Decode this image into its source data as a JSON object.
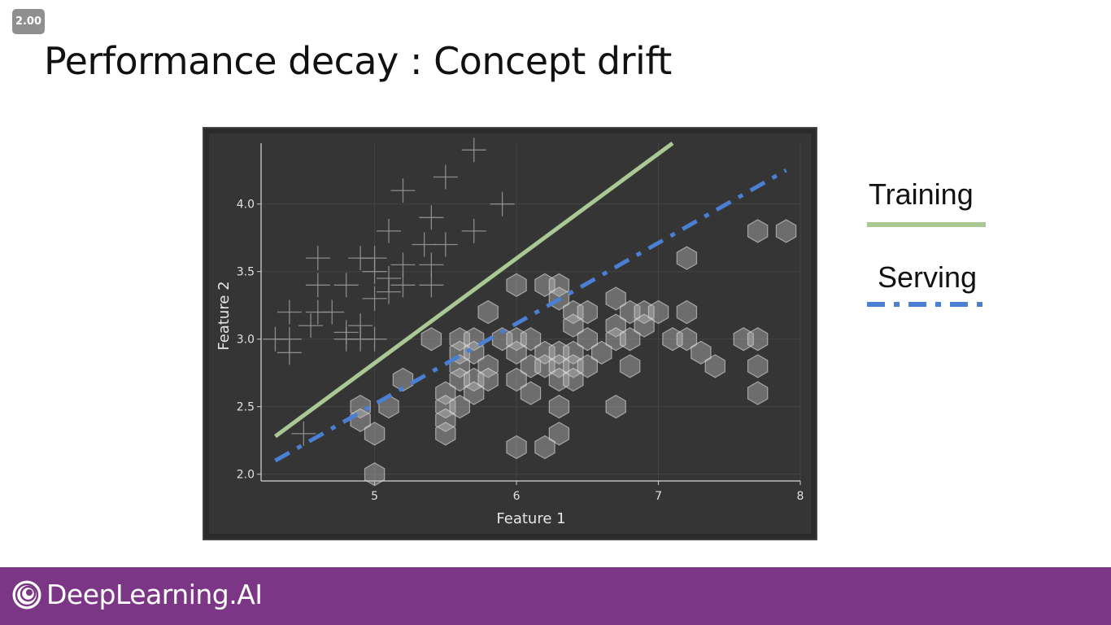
{
  "player": {
    "speed_label": "2.00"
  },
  "slide": {
    "title": "Performance decay : Concept drift"
  },
  "legend": [
    {
      "label": "Training",
      "color": "#a9c894",
      "style": "solid"
    },
    {
      "label": "Serving",
      "color": "#4a7fd4",
      "style": "dashdot"
    }
  ],
  "footer": {
    "brand": "DeepLearning.AI",
    "color": "#7b3686"
  },
  "chart_data": {
    "type": "scatter",
    "xlabel": "Feature 1",
    "ylabel": "Feature 2",
    "xlim": [
      4.2,
      8
    ],
    "ylim": [
      1.95,
      4.45
    ],
    "xticks": [
      5,
      6,
      7,
      8
    ],
    "yticks": [
      2.0,
      2.5,
      3.0,
      3.5,
      4.0
    ],
    "grid": true,
    "background": "#353535",
    "series": [
      {
        "marker": "cross",
        "points": [
          [
            5.7,
            4.4
          ],
          [
            5.5,
            4.2
          ],
          [
            5.2,
            4.1
          ],
          [
            5.9,
            4.0
          ],
          [
            5.4,
            3.9
          ],
          [
            5.1,
            3.8
          ],
          [
            5.7,
            3.8
          ],
          [
            5.35,
            3.7
          ],
          [
            5.5,
            3.7
          ],
          [
            5.0,
            3.6
          ],
          [
            5.2,
            3.55
          ],
          [
            4.6,
            3.6
          ],
          [
            4.9,
            3.6
          ],
          [
            5.4,
            3.55
          ],
          [
            5.0,
            3.5
          ],
          [
            5.1,
            3.45
          ],
          [
            4.8,
            3.4
          ],
          [
            4.6,
            3.4
          ],
          [
            5.4,
            3.4
          ],
          [
            5.2,
            3.4
          ],
          [
            5.0,
            3.3
          ],
          [
            5.1,
            3.35
          ],
          [
            4.7,
            3.2
          ],
          [
            4.6,
            3.2
          ],
          [
            4.55,
            3.1
          ],
          [
            4.4,
            3.2
          ],
          [
            4.9,
            3.1
          ],
          [
            4.8,
            3.05
          ],
          [
            4.8,
            3.0
          ],
          [
            4.9,
            3.0
          ],
          [
            5.0,
            3.0
          ],
          [
            4.3,
            3.0
          ],
          [
            4.4,
            3.0
          ],
          [
            4.4,
            2.9
          ],
          [
            4.5,
            2.3
          ]
        ]
      },
      {
        "marker": "hexagon",
        "points": [
          [
            7.7,
            3.8
          ],
          [
            7.9,
            3.8
          ],
          [
            7.2,
            3.6
          ],
          [
            6.0,
            3.4
          ],
          [
            6.2,
            3.4
          ],
          [
            6.3,
            3.4
          ],
          [
            6.3,
            3.3
          ],
          [
            6.7,
            3.3
          ],
          [
            5.8,
            3.2
          ],
          [
            6.4,
            3.2
          ],
          [
            6.5,
            3.2
          ],
          [
            6.8,
            3.2
          ],
          [
            6.9,
            3.2
          ],
          [
            7.0,
            3.2
          ],
          [
            7.2,
            3.2
          ],
          [
            6.7,
            3.1
          ],
          [
            6.9,
            3.1
          ],
          [
            6.4,
            3.1
          ],
          [
            5.4,
            3.0
          ],
          [
            5.6,
            3.0
          ],
          [
            5.7,
            3.0
          ],
          [
            5.9,
            3.0
          ],
          [
            6.0,
            3.0
          ],
          [
            6.1,
            3.0
          ],
          [
            6.5,
            3.0
          ],
          [
            6.7,
            3.0
          ],
          [
            6.8,
            3.0
          ],
          [
            7.1,
            3.0
          ],
          [
            7.2,
            3.0
          ],
          [
            7.6,
            3.0
          ],
          [
            7.7,
            3.0
          ],
          [
            5.6,
            2.9
          ],
          [
            5.7,
            2.9
          ],
          [
            6.0,
            2.9
          ],
          [
            6.2,
            2.9
          ],
          [
            6.3,
            2.9
          ],
          [
            6.4,
            2.9
          ],
          [
            6.6,
            2.9
          ],
          [
            7.3,
            2.9
          ],
          [
            5.6,
            2.8
          ],
          [
            5.8,
            2.8
          ],
          [
            6.1,
            2.8
          ],
          [
            6.2,
            2.8
          ],
          [
            6.3,
            2.8
          ],
          [
            6.4,
            2.8
          ],
          [
            6.5,
            2.8
          ],
          [
            6.8,
            2.8
          ],
          [
            7.4,
            2.8
          ],
          [
            7.7,
            2.8
          ],
          [
            5.2,
            2.7
          ],
          [
            5.6,
            2.7
          ],
          [
            5.7,
            2.7
          ],
          [
            5.8,
            2.7
          ],
          [
            6.0,
            2.7
          ],
          [
            6.3,
            2.7
          ],
          [
            6.4,
            2.7
          ],
          [
            5.5,
            2.6
          ],
          [
            5.7,
            2.6
          ],
          [
            6.1,
            2.6
          ],
          [
            7.7,
            2.6
          ],
          [
            4.9,
            2.5
          ],
          [
            5.1,
            2.5
          ],
          [
            5.5,
            2.5
          ],
          [
            5.6,
            2.5
          ],
          [
            6.3,
            2.5
          ],
          [
            6.7,
            2.5
          ],
          [
            4.9,
            2.4
          ],
          [
            5.5,
            2.4
          ],
          [
            5.5,
            2.3
          ],
          [
            5.0,
            2.3
          ],
          [
            6.3,
            2.3
          ],
          [
            6.0,
            2.2
          ],
          [
            6.2,
            2.2
          ],
          [
            5.0,
            2.0
          ]
        ]
      }
    ],
    "lines": [
      {
        "name": "Training",
        "color": "#a9c894",
        "style": "solid",
        "from": [
          4.3,
          2.28
        ],
        "to": [
          7.1,
          4.45
        ]
      },
      {
        "name": "Serving",
        "color": "#4a7fd4",
        "style": "dashdot",
        "from": [
          4.3,
          2.1
        ],
        "to": [
          7.9,
          4.25
        ]
      }
    ]
  }
}
